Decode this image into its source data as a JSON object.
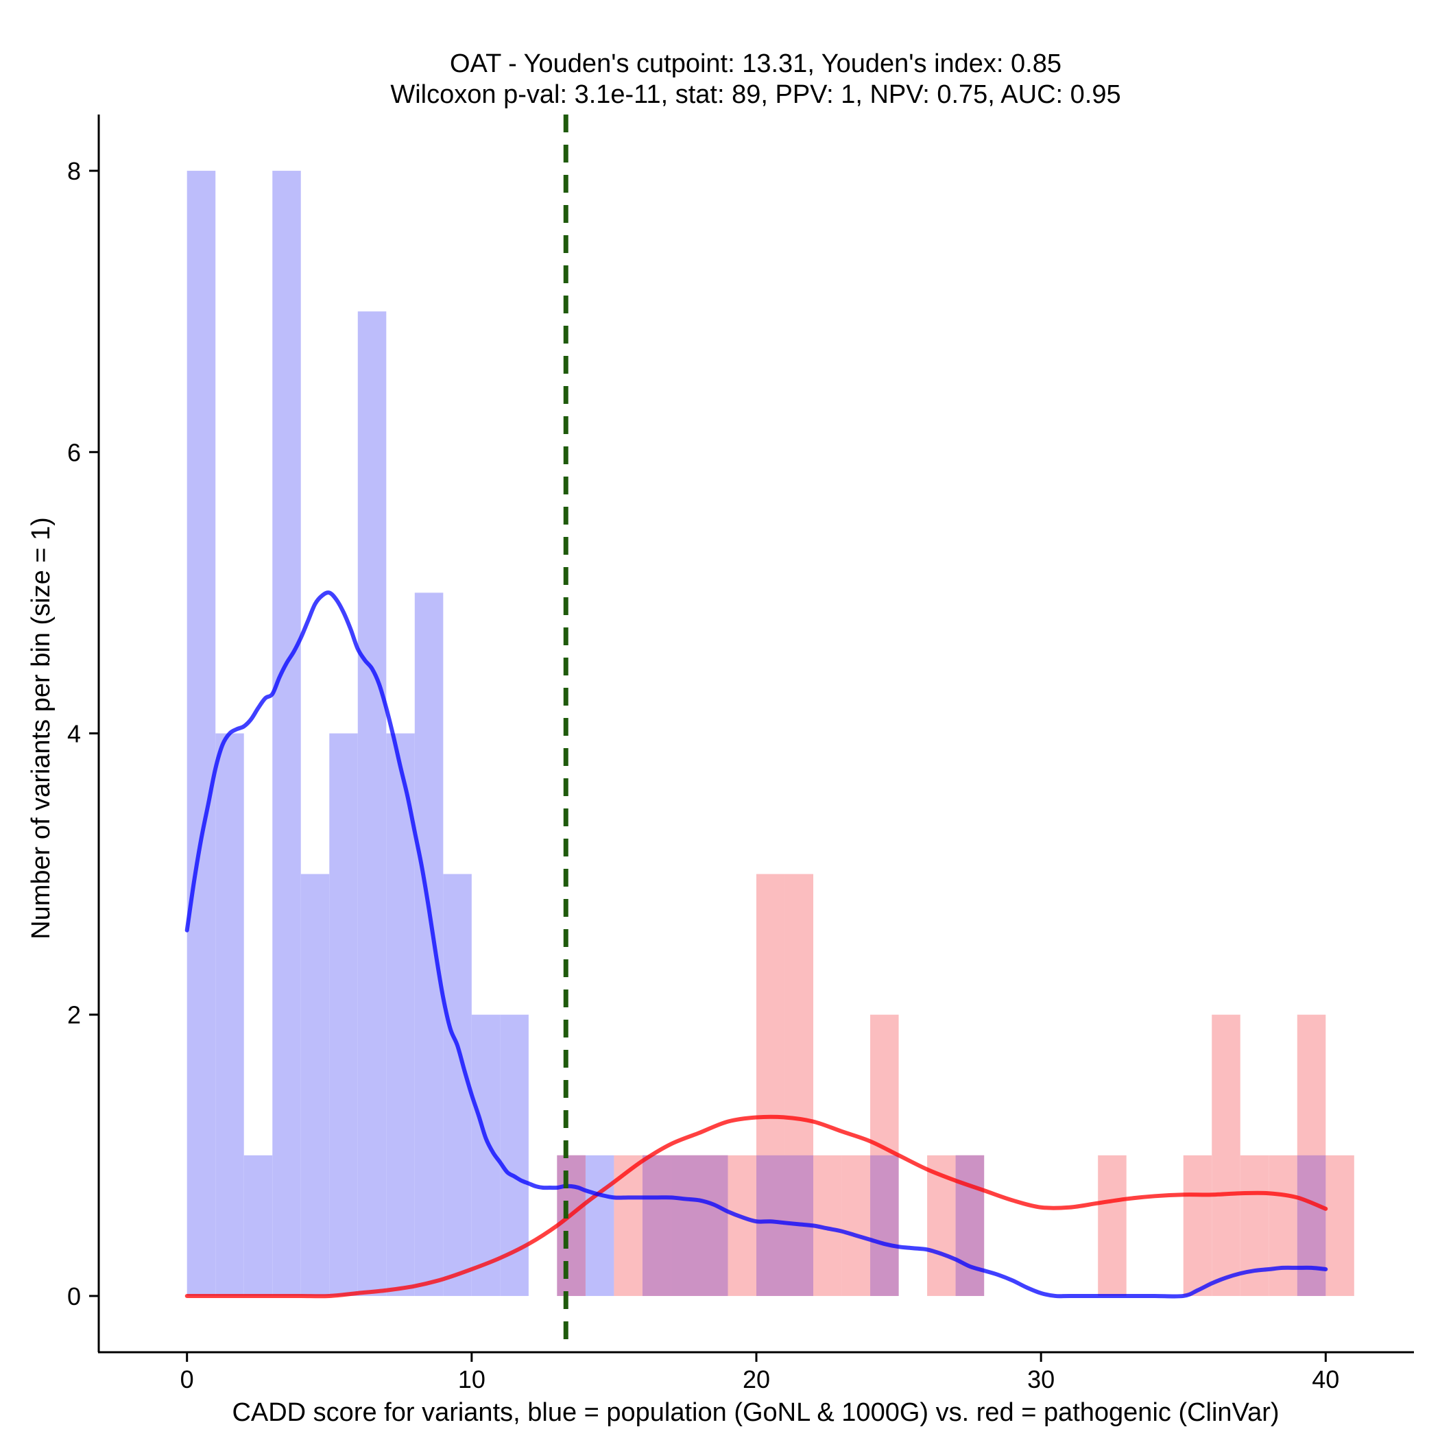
{
  "chart_data": {
    "type": "histogram",
    "title_line1": "OAT - Youden's cutpoint: 13.31, Youden's index: 0.85",
    "title_line2": "Wilcoxon p-val: 3.1e-11, stat: 89, PPV: 1, NPV: 0.75, AUC: 0.95",
    "xlabel": "CADD score for variants, blue = population (GoNL & 1000G) vs. red = pathogenic (ClinVar)",
    "ylabel": "Number of variants per bin (size = 1)",
    "xlim": [
      -3.1,
      43.1
    ],
    "ylim": [
      -0.4,
      8.4
    ],
    "x_ticks": [
      0,
      10,
      20,
      30,
      40
    ],
    "x_tick_labels": [
      "0",
      "10",
      "20",
      "30",
      "40"
    ],
    "y_ticks": [
      0,
      2,
      4,
      6,
      8
    ],
    "y_tick_labels": [
      "0",
      "2",
      "4",
      "6",
      "8"
    ],
    "bin_width": 1,
    "cutpoint": 13.31,
    "series": [
      {
        "name": "population (GoNL & 1000G)",
        "color": "#0000ff",
        "bar_color": "#bdbdfb",
        "bins": [
          {
            "start": 0,
            "count": 8
          },
          {
            "start": 1,
            "count": 4
          },
          {
            "start": 2,
            "count": 1
          },
          {
            "start": 3,
            "count": 8
          },
          {
            "start": 4,
            "count": 3
          },
          {
            "start": 5,
            "count": 4
          },
          {
            "start": 6,
            "count": 7
          },
          {
            "start": 7,
            "count": 4
          },
          {
            "start": 8,
            "count": 5
          },
          {
            "start": 9,
            "count": 3
          },
          {
            "start": 10,
            "count": 2
          },
          {
            "start": 11,
            "count": 2
          },
          {
            "start": 13,
            "count": 1
          },
          {
            "start": 14,
            "count": 1
          },
          {
            "start": 16,
            "count": 1
          },
          {
            "start": 17,
            "count": 1
          },
          {
            "start": 18,
            "count": 1
          },
          {
            "start": 20,
            "count": 1
          },
          {
            "start": 21,
            "count": 1
          },
          {
            "start": 24,
            "count": 1
          },
          {
            "start": 27,
            "count": 1
          },
          {
            "start": 39,
            "count": 1
          }
        ],
        "density_x": [
          0,
          0.25,
          0.5,
          0.75,
          1,
          1.25,
          1.5,
          1.75,
          2,
          2.25,
          2.5,
          2.75,
          3,
          3.25,
          3.5,
          3.75,
          4,
          4.25,
          4.5,
          4.75,
          5,
          5.25,
          5.5,
          5.75,
          6,
          6.25,
          6.5,
          6.75,
          7,
          7.25,
          7.5,
          7.75,
          8,
          8.25,
          8.5,
          8.75,
          9,
          9.25,
          9.5,
          9.75,
          10,
          10.25,
          10.5,
          10.75,
          11,
          11.25,
          11.5,
          11.75,
          12,
          12.25,
          12.5,
          12.75,
          13,
          13.25,
          13.5,
          13.75,
          14,
          14.5,
          15,
          15.5,
          16,
          16.5,
          17,
          17.5,
          18,
          18.5,
          19,
          19.5,
          20,
          20.5,
          21,
          21.5,
          22,
          22.5,
          23,
          23.5,
          24,
          24.5,
          25,
          25.5,
          26,
          26.5,
          27,
          27.5,
          28,
          28.5,
          29,
          29.5,
          30,
          30.5,
          31,
          32,
          33,
          34,
          35,
          35.5,
          36,
          36.5,
          37,
          37.5,
          38,
          38.5,
          39,
          39.5,
          40
        ],
        "density_y": [
          2.6,
          2.95,
          3.25,
          3.5,
          3.75,
          3.92,
          4.0,
          4.03,
          4.05,
          4.1,
          4.18,
          4.25,
          4.28,
          4.4,
          4.5,
          4.58,
          4.68,
          4.8,
          4.92,
          4.98,
          5.0,
          4.95,
          4.86,
          4.74,
          4.6,
          4.52,
          4.46,
          4.35,
          4.18,
          3.98,
          3.76,
          3.55,
          3.3,
          3.05,
          2.75,
          2.42,
          2.12,
          1.9,
          1.78,
          1.6,
          1.43,
          1.28,
          1.12,
          1.02,
          0.95,
          0.88,
          0.85,
          0.82,
          0.8,
          0.78,
          0.77,
          0.77,
          0.77,
          0.78,
          0.78,
          0.77,
          0.75,
          0.72,
          0.7,
          0.7,
          0.7,
          0.7,
          0.7,
          0.69,
          0.68,
          0.65,
          0.6,
          0.56,
          0.53,
          0.53,
          0.52,
          0.51,
          0.5,
          0.48,
          0.46,
          0.43,
          0.4,
          0.37,
          0.35,
          0.34,
          0.33,
          0.3,
          0.26,
          0.21,
          0.18,
          0.15,
          0.11,
          0.06,
          0.02,
          0.0,
          0.0,
          0.0,
          0.0,
          0.0,
          0.0,
          0.04,
          0.09,
          0.13,
          0.16,
          0.18,
          0.19,
          0.2,
          0.2,
          0.2,
          0.19
        ],
        "density_scale": 1
      },
      {
        "name": "pathogenic (ClinVar)",
        "color": "#ff0000",
        "bar_color": "#fbbdbf",
        "bins": [
          {
            "start": 13,
            "count": 1
          },
          {
            "start": 15,
            "count": 1
          },
          {
            "start": 16,
            "count": 1
          },
          {
            "start": 17,
            "count": 1
          },
          {
            "start": 18,
            "count": 1
          },
          {
            "start": 19,
            "count": 1
          },
          {
            "start": 20,
            "count": 3
          },
          {
            "start": 21,
            "count": 3
          },
          {
            "start": 22,
            "count": 1
          },
          {
            "start": 23,
            "count": 1
          },
          {
            "start": 24,
            "count": 2
          },
          {
            "start": 26,
            "count": 1
          },
          {
            "start": 27,
            "count": 1
          },
          {
            "start": 32,
            "count": 1
          },
          {
            "start": 35,
            "count": 1
          },
          {
            "start": 36,
            "count": 2
          },
          {
            "start": 37,
            "count": 1
          },
          {
            "start": 38,
            "count": 1
          },
          {
            "start": 39,
            "count": 2
          },
          {
            "start": 40,
            "count": 1
          }
        ],
        "density_x": [
          0,
          1,
          2,
          3,
          4,
          5,
          6,
          7,
          8,
          9,
          10,
          11,
          12,
          13,
          14,
          15,
          16,
          17,
          18,
          19,
          20,
          21,
          22,
          23,
          24,
          25,
          26,
          27,
          28,
          29,
          30,
          31,
          32,
          33,
          34,
          35,
          36,
          37,
          38,
          39,
          40
        ],
        "density_y": [
          0,
          0,
          0,
          0,
          0,
          0,
          0.02,
          0.04,
          0.07,
          0.12,
          0.19,
          0.27,
          0.37,
          0.5,
          0.66,
          0.81,
          0.96,
          1.08,
          1.16,
          1.24,
          1.27,
          1.27,
          1.24,
          1.17,
          1.1,
          1.0,
          0.9,
          0.82,
          0.75,
          0.68,
          0.63,
          0.63,
          0.66,
          0.69,
          0.71,
          0.72,
          0.72,
          0.73,
          0.73,
          0.7,
          0.62
        ],
        "density_scale": 1
      }
    ],
    "overlap_color": "#cc92c4",
    "cutpoint_color": "#1f5a0c"
  }
}
